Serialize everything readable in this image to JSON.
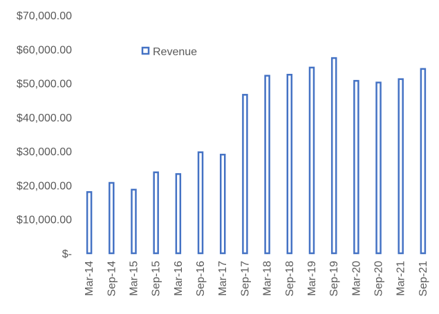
{
  "chart_data": {
    "type": "bar",
    "title": "",
    "xlabel": "",
    "ylabel": "",
    "categories": [
      "Mar-14",
      "Sep-14",
      "Mar-15",
      "Sep-15",
      "Mar-16",
      "Sep-16",
      "Mar-17",
      "Sep-17",
      "Mar-18",
      "Sep-18",
      "Mar-19",
      "Sep-19",
      "Mar-20",
      "Sep-20",
      "Mar-21",
      "Sep-21"
    ],
    "series": [
      {
        "name": "Revenue",
        "values": [
          18000,
          20700,
          18700,
          23800,
          23300,
          29700,
          29000,
          46600,
          52200,
          52500,
          54600,
          57400,
          50700,
          50200,
          51200,
          54200
        ]
      }
    ],
    "ylim": [
      0,
      70000
    ],
    "y_ticks": [
      0,
      10000,
      20000,
      30000,
      40000,
      50000,
      60000,
      70000
    ],
    "y_tick_labels": [
      "$-",
      "$10,000.00",
      "$20,000.00",
      "$30,000.00",
      "$40,000.00",
      "$50,000.00",
      "$60,000.00",
      "$70,000.00"
    ],
    "grid": false,
    "legend": {
      "position": "top-left-inside",
      "entries": [
        "Revenue"
      ]
    },
    "colors": {
      "bar_stroke": "#4472C4",
      "bar_fill": "#ffffff",
      "text": "#595959"
    }
  }
}
